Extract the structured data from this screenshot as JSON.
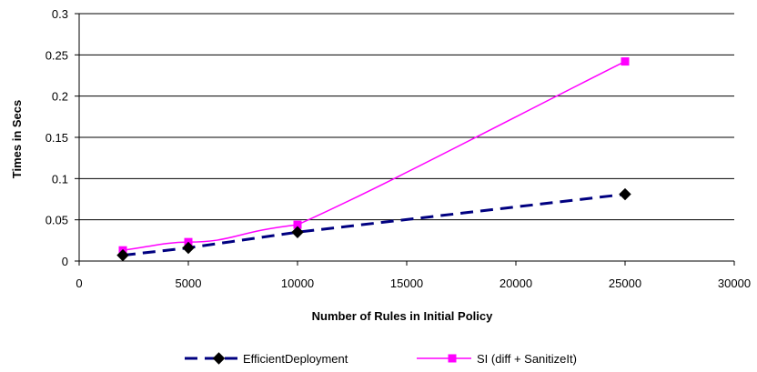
{
  "chart_data": {
    "type": "line",
    "xlabel": "Number of Rules in Initial Policy",
    "ylabel": "Times in Secs",
    "xlim": [
      0,
      30000
    ],
    "ylim": [
      0,
      0.3
    ],
    "x_ticks": [
      "0",
      "5000",
      "10000",
      "15000",
      "20000",
      "25000",
      "30000"
    ],
    "y_ticks": [
      "0",
      "0.05",
      "0.1",
      "0.15",
      "0.2",
      "0.25",
      "0.3"
    ],
    "grid": "horizontal",
    "legend_position": "bottom",
    "series": [
      {
        "name": "EfficientDeployment",
        "color": "#000080",
        "marker": "diamond",
        "line_style": "dashed",
        "x": [
          2000,
          5000,
          10000,
          25000
        ],
        "y": [
          0.007,
          0.016,
          0.035,
          0.081
        ]
      },
      {
        "name": "SI (diff + SanitizeIt)",
        "color": "#ff00ff",
        "marker": "square",
        "line_style": "solid",
        "x": [
          2000,
          5000,
          10000,
          25000
        ],
        "y": [
          0.013,
          0.023,
          0.044,
          0.242
        ]
      }
    ]
  }
}
